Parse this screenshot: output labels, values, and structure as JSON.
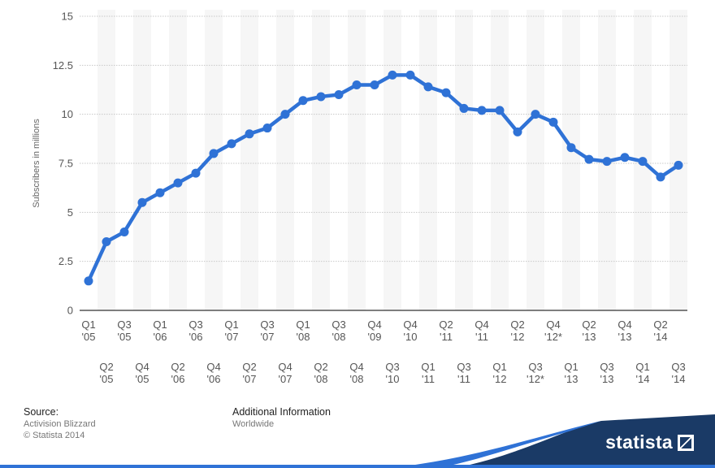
{
  "chart_data": {
    "type": "line",
    "ylabel": "Subscribers in millions",
    "xlabel": "",
    "ylim": [
      0,
      15
    ],
    "yticks": [
      "0",
      "2.5",
      "5",
      "7.5",
      "10",
      "12.5",
      "15"
    ],
    "grid": "horizontal dotted",
    "categories": [
      [
        "Q1",
        "'05"
      ],
      [
        "Q2",
        "'05"
      ],
      [
        "Q3",
        "'05"
      ],
      [
        "Q4",
        "'05"
      ],
      [
        "Q1",
        "'06"
      ],
      [
        "Q2",
        "'06"
      ],
      [
        "Q3",
        "'06"
      ],
      [
        "Q4",
        "'06"
      ],
      [
        "Q1",
        "'07"
      ],
      [
        "Q2",
        "'07"
      ],
      [
        "Q3",
        "'07"
      ],
      [
        "Q4",
        "'07"
      ],
      [
        "Q1",
        "'08"
      ],
      [
        "Q2",
        "'08"
      ],
      [
        "Q3",
        "'08"
      ],
      [
        "Q4",
        "'08"
      ],
      [
        "Q4",
        "'09"
      ],
      [
        "Q3",
        "'10"
      ],
      [
        "Q4",
        "'10"
      ],
      [
        "Q1",
        "'11"
      ],
      [
        "Q2",
        "'11"
      ],
      [
        "Q3",
        "'11"
      ],
      [
        "Q4",
        "'11"
      ],
      [
        "Q1",
        "'12"
      ],
      [
        "Q2",
        "'12"
      ],
      [
        "Q3",
        "'12*"
      ],
      [
        "Q4",
        "'12*"
      ],
      [
        "Q1",
        "'13"
      ],
      [
        "Q2",
        "'13"
      ],
      [
        "Q3",
        "'13"
      ],
      [
        "Q4",
        "'13"
      ],
      [
        "Q1",
        "'14"
      ],
      [
        "Q2",
        "'14"
      ],
      [
        "Q3",
        "'14"
      ]
    ],
    "values": [
      1.5,
      3.5,
      4.0,
      5.5,
      6.0,
      6.5,
      7.0,
      8.0,
      8.5,
      9.0,
      9.3,
      10.0,
      10.7,
      10.9,
      11.0,
      11.5,
      11.5,
      12.0,
      12.0,
      11.4,
      11.1,
      10.3,
      10.2,
      10.2,
      9.1,
      10.0,
      9.6,
      8.3,
      7.7,
      7.6,
      7.8,
      7.6,
      6.8,
      7.4
    ],
    "line_color": "#2f72d6"
  },
  "footer": {
    "source_heading": "Source:",
    "source_lines": [
      "Activision Blizzard",
      "© Statista 2014"
    ],
    "additional_heading": "Additional Information",
    "additional_lines": [
      "Worldwide"
    ],
    "brand": "statista"
  }
}
